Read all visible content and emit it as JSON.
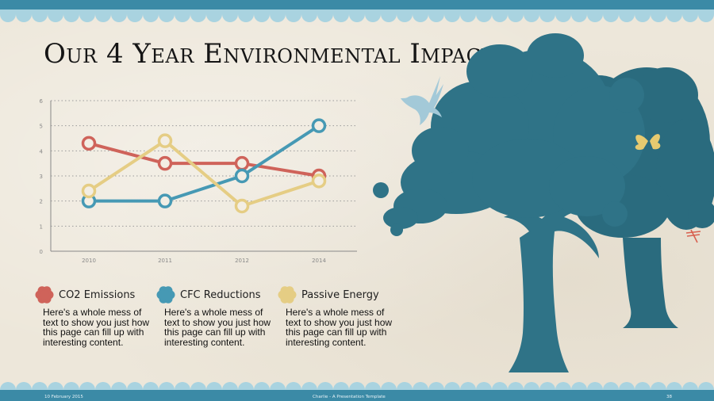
{
  "slide": {
    "title": "Our 4 Year Environmental Impact",
    "footer": {
      "date": "10 February 2015",
      "center": "Charlie - A Presentation Template",
      "page": "38"
    }
  },
  "colors": {
    "co2": "#cf635a",
    "cfc": "#4699b4",
    "passive": "#e5cd84",
    "tree": "#2d6f82",
    "bird": "#9fc6d6",
    "band": "#3b8aa6"
  },
  "legend": [
    {
      "label": "CO2 Emissions",
      "color": "#cf635a",
      "text": "Here's a whole mess of text to show you just how this page can fill up with interesting content."
    },
    {
      "label": "CFC Reductions",
      "color": "#4699b4",
      "text": "Here's a whole mess of text to show you just how this page can fill up with interesting content."
    },
    {
      "label": "Passive Energy",
      "color": "#e5cd84",
      "text": "Here's a whole mess of text to show you just how this page can fill up with interesting content."
    }
  ],
  "chart_data": {
    "type": "line",
    "categories": [
      "2010",
      "2011",
      "2012",
      "2014"
    ],
    "y_ticks": [
      "0",
      "1",
      "2",
      "3",
      "4",
      "5",
      "6"
    ],
    "ylim": [
      0,
      6
    ],
    "grid": true,
    "series": [
      {
        "name": "CO2 Emissions",
        "color": "#cf635a",
        "values": [
          4.3,
          3.5,
          3.5,
          3.0
        ]
      },
      {
        "name": "CFC Reductions",
        "color": "#4699b4",
        "values": [
          2.0,
          2.0,
          3.0,
          5.0
        ]
      },
      {
        "name": "Passive Energy",
        "color": "#e5cd84",
        "values": [
          2.4,
          4.4,
          1.8,
          2.8
        ]
      }
    ]
  }
}
